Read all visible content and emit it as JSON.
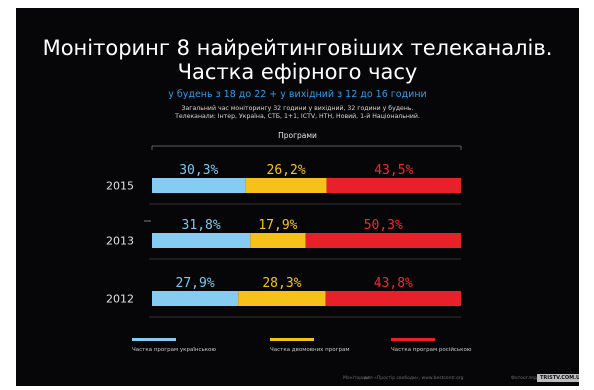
{
  "header": {
    "title_line1": "Моніторинг 8 найрейтинговіших телеканалів.",
    "title_line2": "Частка ефірного часу",
    "subtitle": "у будень з 18 до 22 + у вихідний з 12 до 16 години",
    "note_line1": "Загальний час моніторингу  32 години у вихідний, 32 години у будень.",
    "note_line2": "Телеканали: Інтер, Україна, СТБ, 1+1, ICTV, НТН, Новий, 1-й Національний."
  },
  "chart_data": {
    "type": "bar",
    "stacked": true,
    "orientation": "horizontal",
    "group_label": "Програми",
    "categories": [
      "2015",
      "2013",
      "2012"
    ],
    "series": [
      {
        "name": "Частка програм українською",
        "values": [
          30.3,
          31.8,
          27.9
        ],
        "labels": [
          "30,3%",
          "31,8%",
          "27,9%"
        ],
        "color": "#86ccf2",
        "label_color": "#7ec8f0"
      },
      {
        "name": "Частка двомовних програм",
        "values": [
          26.2,
          17.9,
          28.3
        ],
        "labels": [
          "26,2%",
          "17,9%",
          "28,3%"
        ],
        "color": "#f6c21a",
        "label_color": "#f5c418"
      },
      {
        "name": "Частка програм російською",
        "values": [
          43.5,
          50.3,
          43.8
        ],
        "labels": [
          "43,5%",
          "50,3%",
          "43,8%"
        ],
        "color": "#e8202a",
        "label_color": "#ee2a30"
      }
    ],
    "grid": false,
    "legend_position": "bottom"
  },
  "footer": {
    "left_text": "Моніторинг",
    "mid_text": "для «Простір свободи», www.bestcentr.org",
    "right_text": "Фотоогляд ",
    "logo_text": "TRISTV.COM.UA"
  }
}
